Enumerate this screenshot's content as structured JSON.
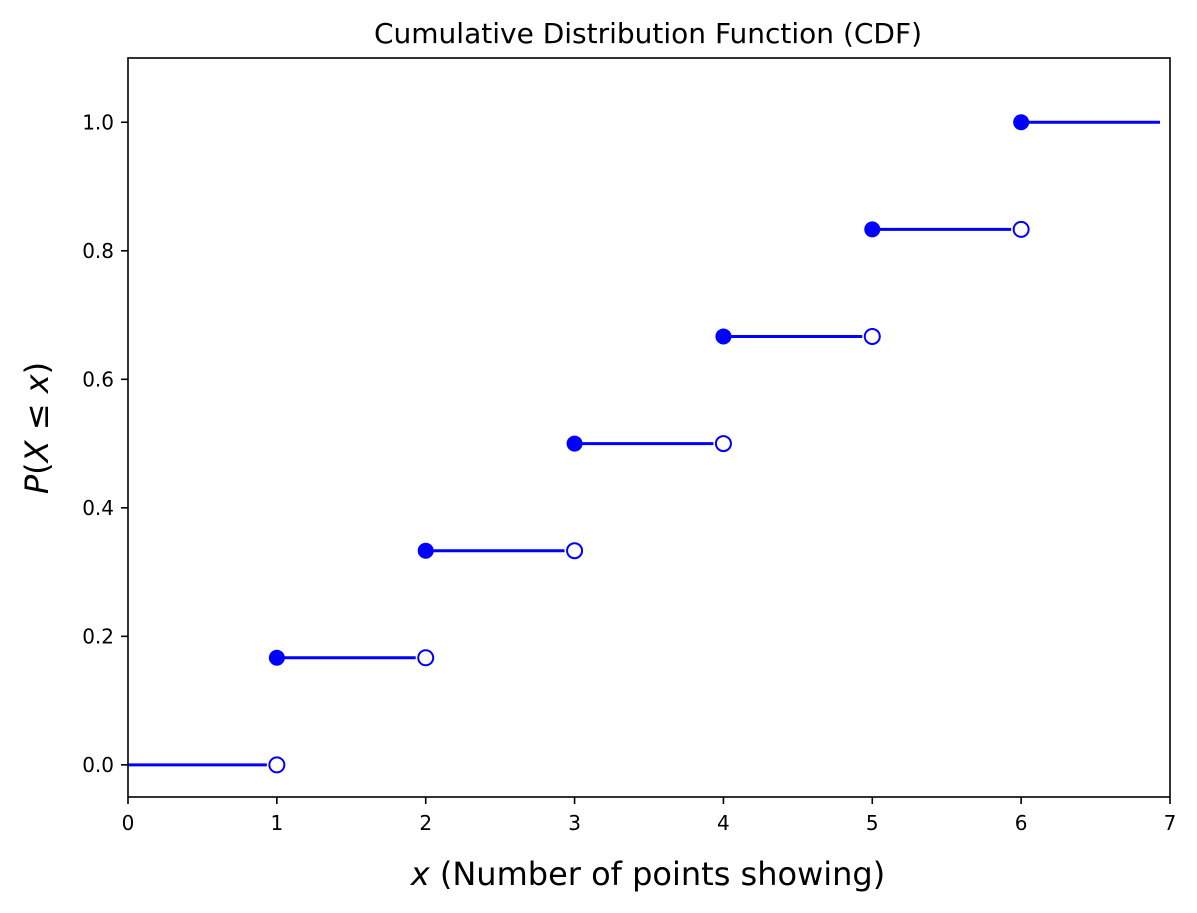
{
  "chart_data": {
    "type": "line",
    "title": "Cumulative Distribution Function (CDF)",
    "xlabel_var": "x",
    "xlabel_rest": " (Number of points showing)",
    "ylabel_parts": [
      "P",
      "(",
      "X",
      " ≤ ",
      "x",
      ")"
    ],
    "xlim": [
      0,
      7
    ],
    "ylim": [
      -0.05,
      1.1
    ],
    "x_ticks": [
      0,
      1,
      2,
      3,
      4,
      5,
      6,
      7
    ],
    "x_tick_labels": [
      "0",
      "1",
      "2",
      "3",
      "4",
      "5",
      "6",
      "7"
    ],
    "y_ticks": [
      0.0,
      0.2,
      0.4,
      0.6,
      0.8,
      1.0
    ],
    "y_tick_labels": [
      "0.0",
      "0.2",
      "0.4",
      "0.6",
      "0.8",
      "1.0"
    ],
    "grid": false,
    "color": "#0000ff",
    "steps": [
      {
        "x_start": 0,
        "x_end": 1,
        "y": 0.0,
        "closed_start": false,
        "open_end": true
      },
      {
        "x_start": 1,
        "x_end": 2,
        "y": 0.1667,
        "closed_start": true,
        "open_end": true
      },
      {
        "x_start": 2,
        "x_end": 3,
        "y": 0.3333,
        "closed_start": true,
        "open_end": true
      },
      {
        "x_start": 3,
        "x_end": 4,
        "y": 0.5,
        "closed_start": true,
        "open_end": true
      },
      {
        "x_start": 4,
        "x_end": 5,
        "y": 0.6667,
        "closed_start": true,
        "open_end": true
      },
      {
        "x_start": 5,
        "x_end": 6,
        "y": 0.8333,
        "closed_start": true,
        "open_end": true
      },
      {
        "x_start": 6,
        "x_end": 7,
        "y": 1.0,
        "closed_start": true,
        "open_end": false
      }
    ]
  }
}
